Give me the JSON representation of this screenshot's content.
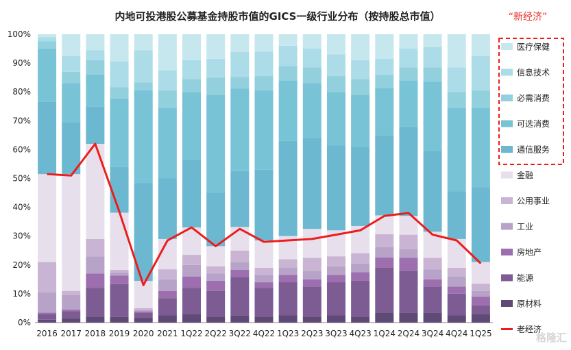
{
  "chart_data": {
    "type": "bar",
    "stacked": true,
    "normalized": true,
    "title": "内地可投港股公募基金持股市值的GICS一级行业分布（按持股总市值）",
    "highlight_label": "“新经济”",
    "categories": [
      "2016",
      "2017",
      "2018",
      "2019",
      "2020",
      "2021",
      "1Q22",
      "2Q22",
      "3Q22",
      "4Q22",
      "1Q23",
      "2Q23",
      "3Q23",
      "4Q23",
      "1Q24",
      "2Q24",
      "3Q24",
      "4Q24",
      "1Q25"
    ],
    "ylim": [
      0,
      100
    ],
    "yticks": [
      "0%",
      "10%",
      "20%",
      "30%",
      "40%",
      "50%",
      "60%",
      "70%",
      "80%",
      "90%",
      "100%"
    ],
    "grid": false,
    "legend_position": "right",
    "series": [
      {
        "name": "原材料",
        "color": "#5e4a75",
        "values": [
          1.0,
          1.5,
          2.0,
          2.0,
          1.5,
          2.5,
          3.0,
          2.0,
          2.5,
          2.0,
          2.5,
          2.0,
          2.5,
          2.0,
          3.5,
          3.5,
          3.5,
          2.5,
          3.0
        ]
      },
      {
        "name": "能源",
        "color": "#7d5b93",
        "values": [
          2.0,
          2.5,
          10.0,
          11.5,
          1.5,
          6.0,
          9.0,
          9.0,
          13.0,
          10.0,
          11.5,
          10.5,
          11.5,
          12.5,
          15.5,
          14.5,
          9.0,
          7.5,
          3.0
        ]
      },
      {
        "name": "房地产",
        "color": "#9d6fae",
        "values": [
          0.5,
          0.5,
          5.0,
          3.0,
          0.5,
          2.5,
          4.0,
          3.5,
          2.5,
          2.0,
          2.5,
          2.5,
          2.5,
          3.0,
          3.5,
          4.5,
          2.5,
          2.5,
          3.0
        ]
      },
      {
        "name": "工业",
        "color": "#b7a3c8",
        "values": [
          7.0,
          5.0,
          6.0,
          1.0,
          0.5,
          4.0,
          4.0,
          2.5,
          2.5,
          2.5,
          2.5,
          3.0,
          3.0,
          3.0,
          3.5,
          3.0,
          3.5,
          3.5,
          2.0
        ]
      },
      {
        "name": "公用事业",
        "color": "#c9b5d3",
        "values": [
          10.5,
          1.5,
          6.0,
          1.0,
          0.5,
          3.5,
          3.5,
          2.5,
          4.0,
          2.5,
          3.0,
          4.5,
          3.5,
          3.5,
          4.5,
          5.0,
          4.0,
          3.0,
          2.5
        ]
      },
      {
        "name": "金融",
        "color": "#e7e0ec",
        "values": [
          30.5,
          40.5,
          33.0,
          20.0,
          8.5,
          10.5,
          9.5,
          7.0,
          8.0,
          9.5,
          8.0,
          10.0,
          9.0,
          9.5,
          6.5,
          6.5,
          9.0,
          10.0,
          7.5
        ]
      },
      {
        "name": "通信服务",
        "color": "#6cb8d0",
        "values": [
          25.0,
          18.0,
          13.0,
          16.0,
          30.5,
          21.0,
          23.5,
          18.5,
          19.0,
          24.5,
          33.0,
          31.5,
          29.5,
          27.5,
          27.5,
          31.0,
          28.0,
          16.5,
          26.0
        ]
      },
      {
        "name": "可选消费",
        "color": "#78c3d5",
        "values": [
          18.5,
          13.5,
          11.0,
          24.0,
          29.0,
          24.5,
          23.5,
          34.0,
          28.0,
          27.5,
          21.0,
          19.0,
          18.5,
          18.0,
          16.5,
          16.0,
          24.0,
          29.0,
          27.5
        ]
      },
      {
        "name": "必需消费",
        "color": "#93d0de",
        "values": [
          2.5,
          4.0,
          5.0,
          4.0,
          2.5,
          6.0,
          4.5,
          6.0,
          4.0,
          5.0,
          5.0,
          5.5,
          5.5,
          5.5,
          4.5,
          4.5,
          5.0,
          5.5,
          6.0
        ]
      },
      {
        "name": "信息技术",
        "color": "#abdce7",
        "values": [
          1.5,
          5.5,
          3.5,
          9.0,
          10.0,
          7.0,
          6.5,
          6.5,
          8.5,
          8.5,
          7.0,
          6.5,
          7.5,
          6.5,
          5.5,
          6.5,
          7.0,
          8.5,
          12.0
        ]
      },
      {
        "name": "医疗保健",
        "color": "#c7e7ef",
        "values": [
          1.0,
          7.5,
          5.5,
          9.5,
          5.0,
          12.5,
          9.0,
          8.5,
          6.0,
          6.0,
          4.0,
          5.0,
          7.0,
          9.0,
          8.5,
          5.0,
          4.5,
          11.5,
          7.5
        ]
      }
    ],
    "line_series": {
      "name": "老经济",
      "color": "#ee1c1c",
      "values": [
        51.5,
        51.0,
        62.0,
        38.5,
        13.0,
        28.5,
        33.0,
        26.5,
        32.5,
        28.0,
        28.5,
        29.0,
        30.5,
        32.0,
        37.0,
        38.0,
        30.5,
        28.5,
        20.5
      ]
    },
    "legend": [
      {
        "name": "医疗保健",
        "color": "#c7e7ef",
        "kind": "box"
      },
      {
        "name": "信息技术",
        "color": "#abdce7",
        "kind": "box"
      },
      {
        "name": "必需消费",
        "color": "#93d0de",
        "kind": "box"
      },
      {
        "name": "可选消费",
        "color": "#78c3d5",
        "kind": "box"
      },
      {
        "name": "通信服务",
        "color": "#6cb8d0",
        "kind": "box"
      },
      {
        "name": "金融",
        "color": "#e7e0ec",
        "kind": "box"
      },
      {
        "name": "公用事业",
        "color": "#c9b5d3",
        "kind": "box"
      },
      {
        "name": "工业",
        "color": "#b7a3c8",
        "kind": "box"
      },
      {
        "name": "房地产",
        "color": "#9d6fae",
        "kind": "box"
      },
      {
        "name": "能源",
        "color": "#7d5b93",
        "kind": "box"
      },
      {
        "name": "原材料",
        "color": "#5e4a75",
        "kind": "box"
      },
      {
        "name": "老经济",
        "color": "#ee1c1c",
        "kind": "line"
      }
    ],
    "watermark": "格隆汇"
  }
}
